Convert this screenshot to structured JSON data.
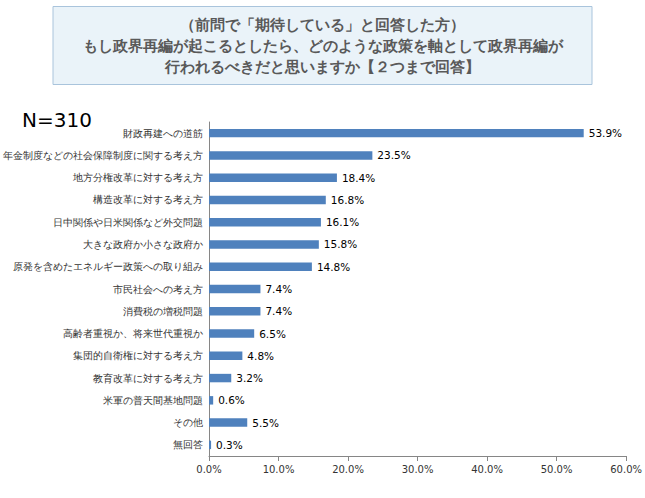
{
  "chart_data": {
    "type": "bar",
    "orientation": "horizontal",
    "title": "（前問で「期待している」と回答した方）\nもし政界再編が起こるとしたら、どのような政策を軸として政界再編が\n行われるべきだと思いますか【２つまで回答】",
    "annotations": [
      "N=310"
    ],
    "categories": [
      "財政再建への道筋",
      "年金制度などの社会保障制度に関する考え方",
      "地方分権改革に対する考え方",
      "構造改革に対する考え方",
      "日中関係や日米関係など外交問題",
      "大きな政府か小さな政府か",
      "原発を含めたエネルギー政策への取り組み",
      "市民社会への考え方",
      "消費税の増税問題",
      "高齢者重視か、将来世代重視か",
      "集団的自衛権に対する考え方",
      "教育改革に対する考え方",
      "米軍の普天間基地問題",
      "その他",
      "無回答"
    ],
    "values": [
      53.9,
      23.5,
      18.4,
      16.8,
      16.1,
      15.8,
      14.8,
      7.4,
      7.4,
      6.5,
      4.8,
      3.2,
      0.6,
      5.5,
      0.3
    ],
    "value_labels": [
      "53.9%",
      "23.5%",
      "18.4%",
      "16.8%",
      "16.1%",
      "15.8%",
      "14.8%",
      "7.4%",
      "7.4%",
      "6.5%",
      "4.8%",
      "3.2%",
      "0.6%",
      "5.5%",
      "0.3%"
    ],
    "color": "#4f81bd",
    "xlim": [
      0,
      60
    ],
    "xticks": [
      {
        "value": 0,
        "label": "0.0%"
      },
      {
        "value": 10,
        "label": "10.0%"
      },
      {
        "value": 20,
        "label": "20.0%"
      },
      {
        "value": 30,
        "label": "30.0%"
      },
      {
        "value": 40,
        "label": "40.0%"
      },
      {
        "value": 50,
        "label": "50.0%"
      },
      {
        "value": 60,
        "label": "60.0%"
      }
    ],
    "grid": false,
    "data_labels": true
  }
}
